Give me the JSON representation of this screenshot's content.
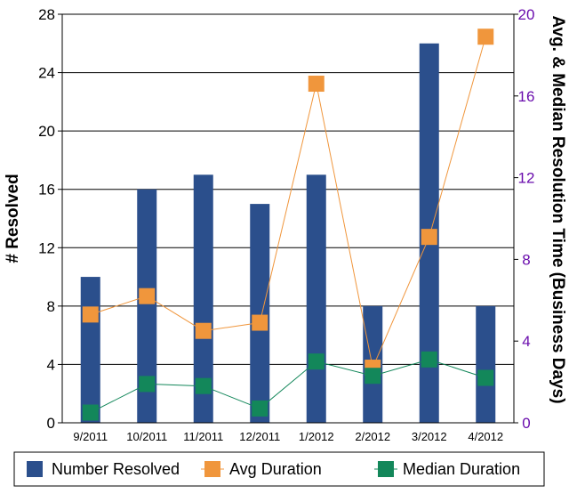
{
  "chart_data": {
    "type": "bar",
    "categories": [
      "9/2011",
      "10/2011",
      "11/2011",
      "12/2011",
      "1/2012",
      "2/2012",
      "3/2012",
      "4/2012"
    ],
    "series": [
      {
        "name": "Number Resolved",
        "type": "bar",
        "axis": "left",
        "color": "#2b4f8c",
        "values": [
          10,
          16,
          17,
          15,
          17,
          8,
          26,
          8
        ]
      },
      {
        "name": "Avg Duration",
        "type": "line",
        "axis": "right",
        "color": "#f0963c",
        "values": [
          5.3,
          6.2,
          4.5,
          4.9,
          16.6,
          2.7,
          9.1,
          18.9
        ]
      },
      {
        "name": "Median Duration",
        "type": "line",
        "axis": "right",
        "color": "#13875a",
        "values": [
          0.5,
          1.9,
          1.8,
          0.7,
          3.0,
          2.3,
          3.1,
          2.2
        ]
      }
    ],
    "ylabel": "# Resolved",
    "y2label": "Avg. & Median Resolution Time (Business Days)",
    "ylim": [
      0,
      28
    ],
    "y2lim": [
      0,
      20
    ],
    "yticks": [
      "0",
      "4",
      "8",
      "12",
      "16",
      "20",
      "24",
      "28"
    ],
    "y2ticks": [
      "0",
      "4",
      "8",
      "12",
      "16",
      "20"
    ],
    "grid": true,
    "legend_position": "bottom",
    "colors": {
      "right_axis": "#6a0dad",
      "grid": "#000000"
    }
  }
}
